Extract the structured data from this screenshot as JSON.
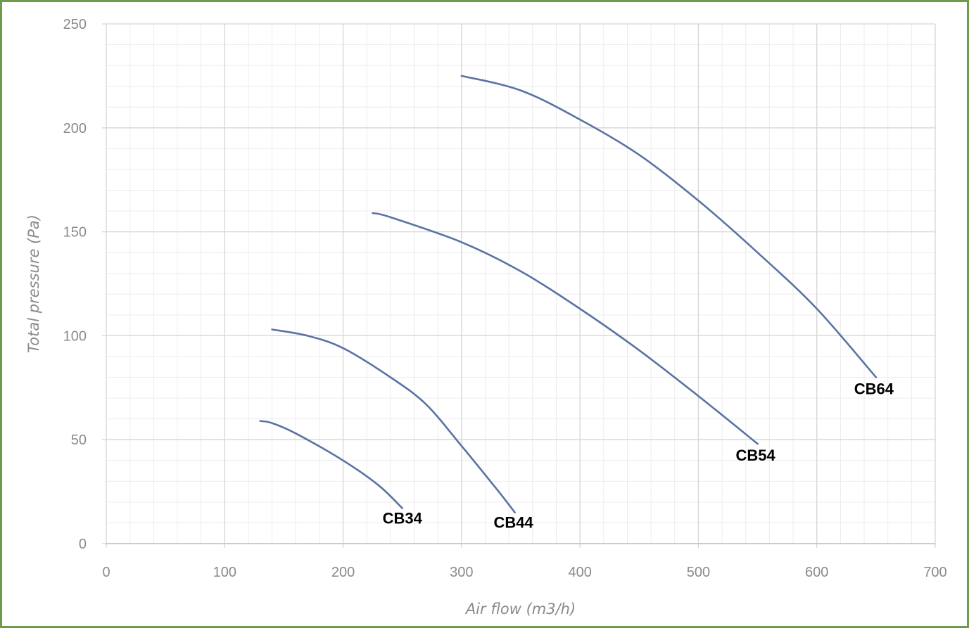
{
  "chart_data": {
    "type": "line",
    "title": "",
    "xlabel": "Air flow (m3/h)",
    "ylabel": "Total pressure (Pa)",
    "xlim": [
      0,
      700
    ],
    "ylim": [
      0,
      250
    ],
    "x_ticks": [
      "0",
      "100",
      "200",
      "300",
      "400",
      "500",
      "600",
      "700"
    ],
    "y_ticks": [
      "0",
      "50",
      "100",
      "150",
      "200",
      "250"
    ],
    "grid": true,
    "legend": "none",
    "line_color": "#5b73a4",
    "series": [
      {
        "name": "CB34",
        "points": [
          [
            130,
            59
          ],
          [
            140,
            58
          ],
          [
            160,
            53
          ],
          [
            200,
            40
          ],
          [
            230,
            28
          ],
          [
            250,
            17
          ]
        ]
      },
      {
        "name": "CB44",
        "points": [
          [
            140,
            103
          ],
          [
            170,
            100
          ],
          [
            200,
            94
          ],
          [
            240,
            80
          ],
          [
            270,
            67
          ],
          [
            300,
            47
          ],
          [
            330,
            26
          ],
          [
            345,
            15
          ]
        ]
      },
      {
        "name": "CB54",
        "points": [
          [
            225,
            159
          ],
          [
            240,
            157
          ],
          [
            300,
            145
          ],
          [
            350,
            131
          ],
          [
            400,
            113
          ],
          [
            450,
            93
          ],
          [
            500,
            71
          ],
          [
            550,
            48
          ]
        ]
      },
      {
        "name": "CB64",
        "points": [
          [
            300,
            225
          ],
          [
            350,
            218
          ],
          [
            400,
            204
          ],
          [
            450,
            187
          ],
          [
            500,
            165
          ],
          [
            550,
            140
          ],
          [
            600,
            113
          ],
          [
            650,
            80
          ]
        ]
      }
    ]
  }
}
